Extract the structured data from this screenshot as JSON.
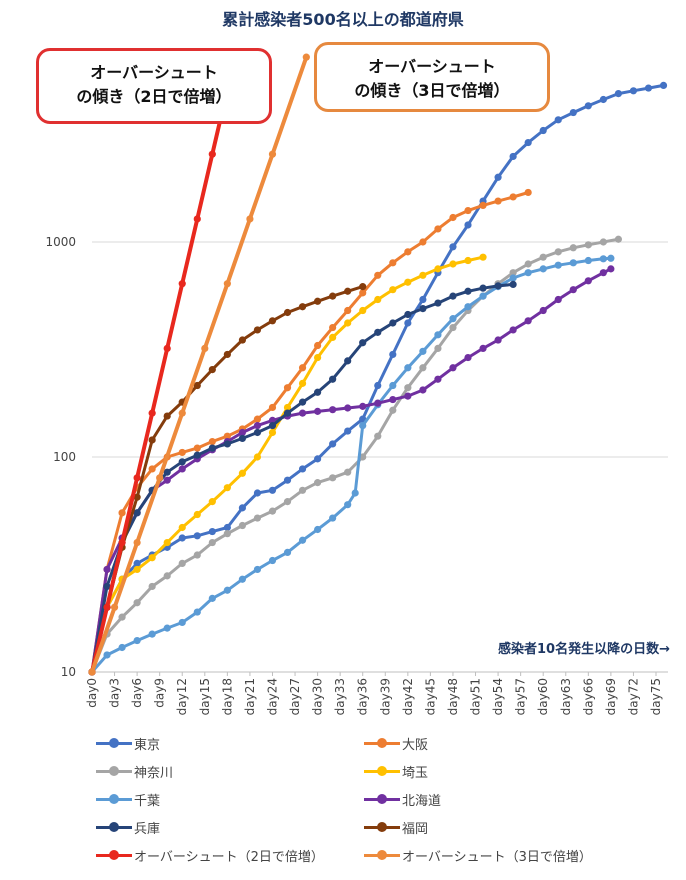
{
  "title": "累計感染者500名以上の都道府県",
  "callouts": {
    "red": {
      "line1": "オーバーシュート",
      "line2": "の傾き（2日で倍増）"
    },
    "orange": {
      "line1": "オーバーシュート",
      "line2": "の傾き（3日で倍増）"
    }
  },
  "x_note": "感染者10名発生以降の日数→",
  "chart_data": {
    "type": "line",
    "title": "累計感染者500名以上の都道府県",
    "xlabel": "感染者10名発生以降の日数→",
    "ylabel": "",
    "yscale": "log",
    "ylim": [
      10,
      5000
    ],
    "yticks": [
      10,
      100,
      1000
    ],
    "xlim": [
      0,
      76
    ],
    "xticks": [
      "day0",
      "day3",
      "day6",
      "day9",
      "day12",
      "day15",
      "day18",
      "day21",
      "day24",
      "day27",
      "day30",
      "day33",
      "day36",
      "day39",
      "day42",
      "day45",
      "day48",
      "day51",
      "day54",
      "day57",
      "day60",
      "day63",
      "day66",
      "day69",
      "day72",
      "day75"
    ],
    "grid": "horizontal",
    "legend_position": "bottom",
    "series": [
      {
        "name": "東京",
        "color": "#4472c4",
        "points": [
          [
            0,
            10
          ],
          [
            2,
            20
          ],
          [
            4,
            27
          ],
          [
            6,
            32
          ],
          [
            8,
            35
          ],
          [
            10,
            38
          ],
          [
            12,
            42
          ],
          [
            14,
            43
          ],
          [
            16,
            45
          ],
          [
            18,
            47
          ],
          [
            20,
            58
          ],
          [
            22,
            68
          ],
          [
            24,
            70
          ],
          [
            26,
            78
          ],
          [
            28,
            88
          ],
          [
            30,
            98
          ],
          [
            32,
            115
          ],
          [
            34,
            132
          ],
          [
            36,
            150
          ],
          [
            38,
            215
          ],
          [
            40,
            300
          ],
          [
            42,
            420
          ],
          [
            44,
            540
          ],
          [
            46,
            720
          ],
          [
            48,
            950
          ],
          [
            50,
            1200
          ],
          [
            52,
            1550
          ],
          [
            54,
            2000
          ],
          [
            56,
            2500
          ],
          [
            58,
            2900
          ],
          [
            60,
            3300
          ],
          [
            62,
            3700
          ],
          [
            64,
            4000
          ],
          [
            66,
            4300
          ],
          [
            68,
            4600
          ],
          [
            70,
            4900
          ],
          [
            72,
            5050
          ],
          [
            74,
            5200
          ],
          [
            76,
            5350
          ]
        ]
      },
      {
        "name": "大阪",
        "color": "#ed7d31",
        "points": [
          [
            0,
            10
          ],
          [
            2,
            30
          ],
          [
            4,
            55
          ],
          [
            6,
            72
          ],
          [
            8,
            88
          ],
          [
            10,
            100
          ],
          [
            12,
            105
          ],
          [
            14,
            110
          ],
          [
            16,
            118
          ],
          [
            18,
            125
          ],
          [
            20,
            135
          ],
          [
            22,
            150
          ],
          [
            24,
            170
          ],
          [
            26,
            210
          ],
          [
            28,
            260
          ],
          [
            30,
            330
          ],
          [
            32,
            400
          ],
          [
            34,
            480
          ],
          [
            36,
            580
          ],
          [
            38,
            700
          ],
          [
            40,
            800
          ],
          [
            42,
            900
          ],
          [
            44,
            1000
          ],
          [
            46,
            1150
          ],
          [
            48,
            1300
          ],
          [
            50,
            1400
          ],
          [
            52,
            1480
          ],
          [
            54,
            1550
          ],
          [
            56,
            1620
          ],
          [
            58,
            1700
          ]
        ]
      },
      {
        "name": "神奈川",
        "color": "#a5a5a5",
        "points": [
          [
            0,
            10
          ],
          [
            2,
            15
          ],
          [
            4,
            18
          ],
          [
            6,
            21
          ],
          [
            8,
            25
          ],
          [
            10,
            28
          ],
          [
            12,
            32
          ],
          [
            14,
            35
          ],
          [
            16,
            40
          ],
          [
            18,
            44
          ],
          [
            20,
            48
          ],
          [
            22,
            52
          ],
          [
            24,
            56
          ],
          [
            26,
            62
          ],
          [
            28,
            70
          ],
          [
            30,
            76
          ],
          [
            32,
            80
          ],
          [
            34,
            85
          ],
          [
            36,
            100
          ],
          [
            38,
            125
          ],
          [
            40,
            165
          ],
          [
            42,
            210
          ],
          [
            44,
            260
          ],
          [
            46,
            320
          ],
          [
            48,
            400
          ],
          [
            50,
            480
          ],
          [
            52,
            560
          ],
          [
            54,
            640
          ],
          [
            56,
            720
          ],
          [
            58,
            790
          ],
          [
            60,
            850
          ],
          [
            62,
            900
          ],
          [
            64,
            940
          ],
          [
            66,
            970
          ],
          [
            68,
            1000
          ],
          [
            70,
            1030
          ]
        ]
      },
      {
        "name": "埼玉",
        "color": "#ffc000",
        "points": [
          [
            0,
            10
          ],
          [
            2,
            20
          ],
          [
            4,
            27
          ],
          [
            6,
            30
          ],
          [
            8,
            34
          ],
          [
            10,
            40
          ],
          [
            12,
            47
          ],
          [
            14,
            54
          ],
          [
            16,
            62
          ],
          [
            18,
            72
          ],
          [
            20,
            84
          ],
          [
            22,
            100
          ],
          [
            24,
            130
          ],
          [
            26,
            170
          ],
          [
            28,
            220
          ],
          [
            30,
            290
          ],
          [
            32,
            360
          ],
          [
            34,
            420
          ],
          [
            36,
            480
          ],
          [
            38,
            540
          ],
          [
            40,
            600
          ],
          [
            42,
            650
          ],
          [
            44,
            700
          ],
          [
            46,
            750
          ],
          [
            48,
            790
          ],
          [
            50,
            820
          ],
          [
            52,
            850
          ]
        ]
      },
      {
        "name": "千葉",
        "color": "#5b9bd5",
        "points": [
          [
            0,
            10
          ],
          [
            2,
            12
          ],
          [
            4,
            13
          ],
          [
            6,
            14
          ],
          [
            8,
            15
          ],
          [
            10,
            16
          ],
          [
            12,
            17
          ],
          [
            14,
            19
          ],
          [
            16,
            22
          ],
          [
            18,
            24
          ],
          [
            20,
            27
          ],
          [
            22,
            30
          ],
          [
            24,
            33
          ],
          [
            26,
            36
          ],
          [
            28,
            41
          ],
          [
            30,
            46
          ],
          [
            32,
            52
          ],
          [
            34,
            60
          ],
          [
            35,
            68
          ],
          [
            36,
            140
          ],
          [
            38,
            175
          ],
          [
            40,
            215
          ],
          [
            42,
            260
          ],
          [
            44,
            310
          ],
          [
            46,
            370
          ],
          [
            48,
            440
          ],
          [
            50,
            500
          ],
          [
            52,
            560
          ],
          [
            54,
            620
          ],
          [
            56,
            680
          ],
          [
            58,
            720
          ],
          [
            60,
            750
          ],
          [
            62,
            780
          ],
          [
            64,
            800
          ],
          [
            66,
            820
          ],
          [
            68,
            835
          ],
          [
            69,
            840
          ]
        ]
      },
      {
        "name": "北海道",
        "color": "#7030a0",
        "points": [
          [
            0,
            10
          ],
          [
            2,
            30
          ],
          [
            4,
            42
          ],
          [
            6,
            55
          ],
          [
            8,
            70
          ],
          [
            10,
            78
          ],
          [
            12,
            88
          ],
          [
            14,
            98
          ],
          [
            16,
            108
          ],
          [
            18,
            118
          ],
          [
            20,
            130
          ],
          [
            22,
            140
          ],
          [
            24,
            148
          ],
          [
            26,
            155
          ],
          [
            28,
            160
          ],
          [
            30,
            163
          ],
          [
            32,
            166
          ],
          [
            34,
            169
          ],
          [
            36,
            172
          ],
          [
            38,
            178
          ],
          [
            40,
            185
          ],
          [
            42,
            192
          ],
          [
            44,
            205
          ],
          [
            46,
            230
          ],
          [
            48,
            260
          ],
          [
            50,
            290
          ],
          [
            52,
            320
          ],
          [
            54,
            350
          ],
          [
            56,
            390
          ],
          [
            58,
            430
          ],
          [
            60,
            480
          ],
          [
            62,
            540
          ],
          [
            64,
            600
          ],
          [
            66,
            660
          ],
          [
            68,
            720
          ],
          [
            69,
            750
          ]
        ]
      },
      {
        "name": "兵庫",
        "color": "#264478",
        "points": [
          [
            0,
            10
          ],
          [
            2,
            25
          ],
          [
            4,
            40
          ],
          [
            6,
            55
          ],
          [
            8,
            70
          ],
          [
            10,
            85
          ],
          [
            12,
            95
          ],
          [
            14,
            102
          ],
          [
            16,
            110
          ],
          [
            18,
            115
          ],
          [
            20,
            122
          ],
          [
            22,
            130
          ],
          [
            24,
            140
          ],
          [
            26,
            160
          ],
          [
            28,
            180
          ],
          [
            30,
            200
          ],
          [
            32,
            230
          ],
          [
            34,
            280
          ],
          [
            36,
            340
          ],
          [
            38,
            380
          ],
          [
            40,
            420
          ],
          [
            42,
            460
          ],
          [
            44,
            490
          ],
          [
            46,
            520
          ],
          [
            48,
            560
          ],
          [
            50,
            590
          ],
          [
            52,
            610
          ],
          [
            54,
            625
          ],
          [
            56,
            635
          ]
        ]
      },
      {
        "name": "福岡",
        "color": "#843c0c",
        "points": [
          [
            0,
            10
          ],
          [
            2,
            20
          ],
          [
            4,
            38
          ],
          [
            6,
            65
          ],
          [
            8,
            120
          ],
          [
            10,
            155
          ],
          [
            12,
            180
          ],
          [
            14,
            215
          ],
          [
            16,
            255
          ],
          [
            18,
            300
          ],
          [
            20,
            350
          ],
          [
            22,
            390
          ],
          [
            24,
            430
          ],
          [
            26,
            470
          ],
          [
            28,
            500
          ],
          [
            30,
            530
          ],
          [
            32,
            560
          ],
          [
            34,
            590
          ],
          [
            36,
            620
          ]
        ]
      },
      {
        "name": "オーバーシュート（2日で倍増）",
        "color": "#e8281e",
        "points": [
          [
            0,
            10
          ],
          [
            2,
            20
          ],
          [
            4,
            40
          ],
          [
            6,
            80
          ],
          [
            8,
            160
          ],
          [
            10,
            320
          ],
          [
            12,
            640
          ],
          [
            14,
            1280
          ],
          [
            16,
            2560
          ],
          [
            19,
            7240
          ]
        ],
        "stroke_width": 4
      },
      {
        "name": "オーバーシュート（3日で倍増）",
        "color": "#ed8a3c",
        "points": [
          [
            0,
            10
          ],
          [
            3,
            20
          ],
          [
            6,
            40
          ],
          [
            9,
            80
          ],
          [
            12,
            160
          ],
          [
            15,
            320
          ],
          [
            18,
            640
          ],
          [
            21,
            1280
          ],
          [
            24,
            2560
          ],
          [
            28.5,
            7240
          ]
        ],
        "stroke_width": 4
      }
    ]
  }
}
